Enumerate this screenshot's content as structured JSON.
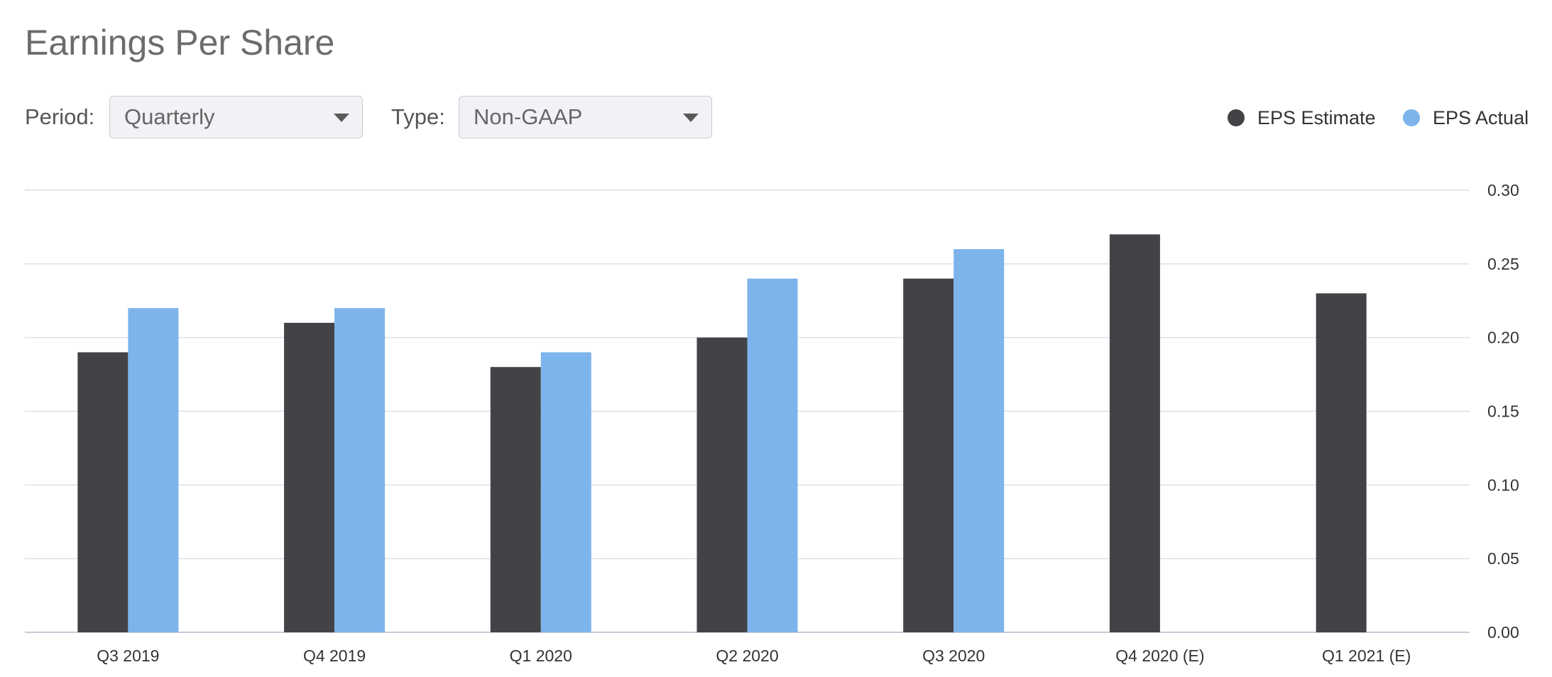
{
  "title": "Earnings Per Share",
  "filters": {
    "period": {
      "label": "Period:",
      "value": "Quarterly"
    },
    "type": {
      "label": "Type:",
      "value": "Non-GAAP"
    }
  },
  "legend": [
    {
      "label": "EPS Estimate",
      "color": "#424247"
    },
    {
      "label": "EPS Actual",
      "color": "#7cb4eb"
    }
  ],
  "chart_data": {
    "type": "bar",
    "title": "Earnings Per Share",
    "xlabel": "",
    "ylabel": "",
    "categories": [
      "Q3 2019",
      "Q4 2019",
      "Q1 2020",
      "Q2 2020",
      "Q3 2020",
      "Q4 2020 (E)",
      "Q1 2021 (E)"
    ],
    "series": [
      {
        "name": "EPS Estimate",
        "color": "#424247",
        "values": [
          0.19,
          0.21,
          0.18,
          0.2,
          0.24,
          0.27,
          0.23
        ]
      },
      {
        "name": "EPS Actual",
        "color": "#7cb4eb",
        "values": [
          0.22,
          0.22,
          0.19,
          0.24,
          0.26,
          null,
          null
        ]
      }
    ],
    "yticks": [
      "0.00",
      "0.05",
      "0.10",
      "0.15",
      "0.20",
      "0.25",
      "0.30"
    ],
    "ylim": [
      0,
      0.3
    ],
    "y_axis_side": "right",
    "grid": true,
    "legend_position": "top-right"
  }
}
